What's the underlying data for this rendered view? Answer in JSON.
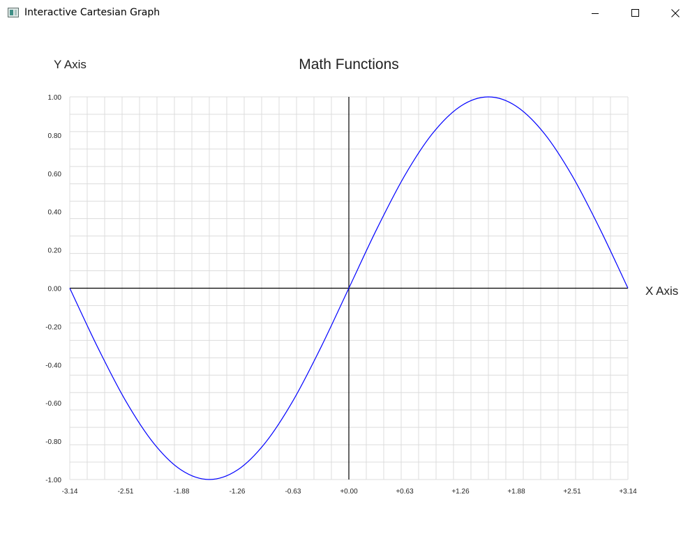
{
  "window": {
    "title": "Interactive Cartesian Graph",
    "controls": [
      "minimize",
      "maximize",
      "close"
    ]
  },
  "colors": {
    "curve": "#0000ff",
    "grid": "#dcdcdc",
    "axis": "#000000",
    "background": "#ffffff"
  },
  "chart_data": {
    "type": "line",
    "title": "Math Functions",
    "xlabel": "X Axis",
    "ylabel": "Y Axis",
    "xlim": [
      -3.14159,
      3.14159
    ],
    "ylim": [
      -1.0,
      1.0
    ],
    "grid": true,
    "x_ticks": [
      "-3.14",
      "-2.51",
      "-1.88",
      "-1.26",
      "-0.63",
      "+0.00",
      "+0.63",
      "+1.26",
      "+1.88",
      "+2.51",
      "+3.14"
    ],
    "y_ticks": [
      "1.00",
      "0.80",
      "0.60",
      "0.40",
      "0.20",
      "0.00",
      "-0.20",
      "-0.40",
      "-0.60",
      "-0.80",
      "-1.00"
    ],
    "series": [
      {
        "color": "#0000ff",
        "x": [
          -3.1416,
          -2.8274,
          -2.5133,
          -2.1991,
          -1.885,
          -1.5708,
          -1.2566,
          -0.9425,
          -0.6283,
          -0.3142,
          0.0,
          0.3142,
          0.6283,
          0.9425,
          1.2566,
          1.5708,
          1.885,
          2.1991,
          2.5133,
          2.8274,
          3.1416
        ],
        "y": [
          0.0,
          -0.309,
          -0.588,
          -0.809,
          -0.951,
          -1.0,
          -0.951,
          -0.809,
          -0.588,
          -0.309,
          0.0,
          0.309,
          0.588,
          0.809,
          0.951,
          1.0,
          0.951,
          0.809,
          0.588,
          0.309,
          0.0
        ]
      }
    ]
  }
}
